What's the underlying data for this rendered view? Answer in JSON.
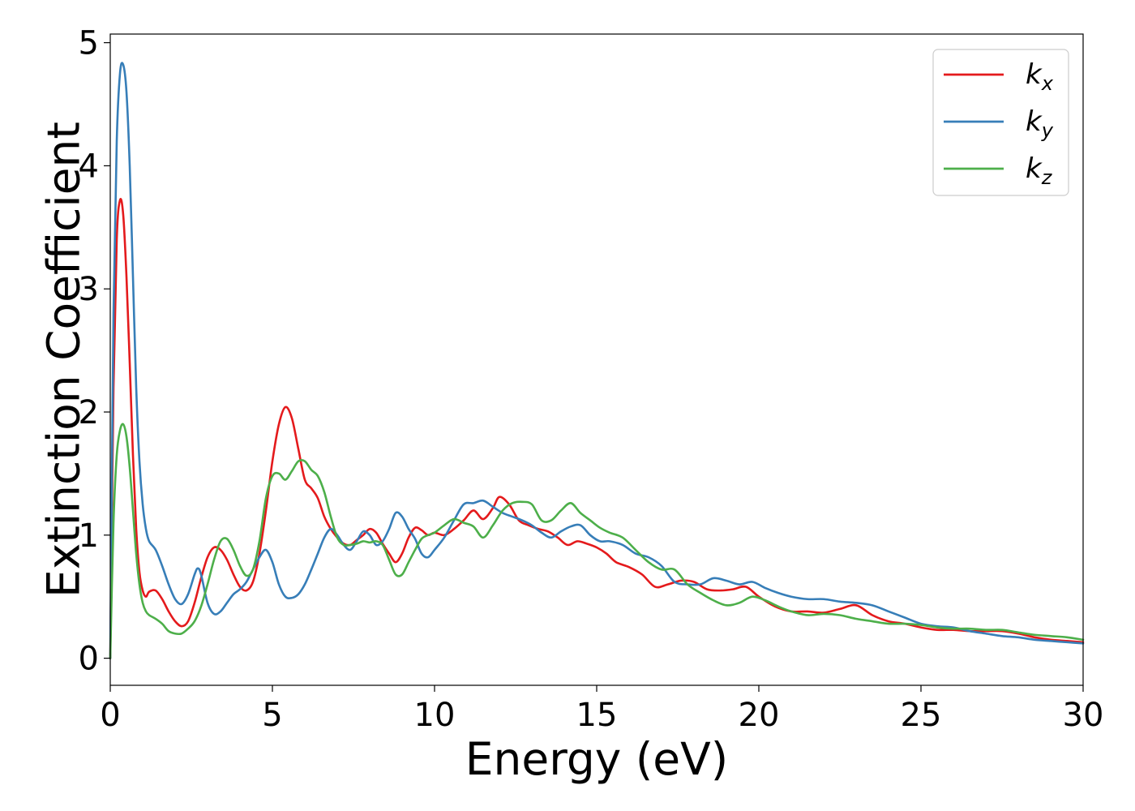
{
  "chart_data": {
    "type": "line",
    "xlabel": "Energy (eV)",
    "ylabel": "Extinction Coefficient",
    "xlim": [
      0,
      30
    ],
    "ylim": [
      -0.22,
      5.07
    ],
    "xticks": [
      0,
      5,
      10,
      15,
      20,
      25,
      30
    ],
    "yticks": [
      0,
      1,
      2,
      3,
      4,
      5
    ],
    "grid": false,
    "legend_position": "top-right",
    "series": [
      {
        "name": "k_x",
        "base": "k",
        "sub": "x",
        "color": "#e41a1c",
        "x": [
          0,
          0.1,
          0.2,
          0.3,
          0.4,
          0.5,
          0.6,
          0.7,
          0.8,
          0.9,
          1.0,
          1.1,
          1.2,
          1.4,
          1.6,
          1.8,
          2.0,
          2.2,
          2.4,
          2.6,
          2.8,
          3.0,
          3.2,
          3.4,
          3.6,
          3.8,
          4.0,
          4.2,
          4.4,
          4.6,
          4.8,
          5.0,
          5.2,
          5.4,
          5.6,
          5.8,
          6.0,
          6.2,
          6.4,
          6.6,
          6.8,
          7.0,
          7.2,
          7.4,
          7.6,
          7.8,
          8.0,
          8.2,
          8.4,
          8.6,
          8.8,
          9.0,
          9.2,
          9.4,
          9.6,
          9.8,
          10.0,
          10.3,
          10.6,
          10.9,
          11.2,
          11.5,
          11.8,
          12.0,
          12.3,
          12.6,
          12.9,
          13.2,
          13.5,
          13.8,
          14.1,
          14.4,
          14.7,
          15.0,
          15.3,
          15.6,
          16.0,
          16.4,
          16.8,
          17.2,
          17.6,
          18.0,
          18.4,
          18.8,
          19.2,
          19.6,
          20.0,
          20.5,
          21.0,
          21.5,
          22.0,
          22.5,
          23.0,
          23.5,
          24.0,
          24.5,
          25.0,
          25.5,
          26.0,
          26.5,
          27.0,
          27.5,
          28.0,
          28.5,
          29.0,
          29.5,
          30.0
        ],
        "y": [
          0.0,
          2.2,
          3.4,
          3.72,
          3.6,
          3.1,
          2.4,
          1.65,
          1.05,
          0.7,
          0.55,
          0.5,
          0.54,
          0.55,
          0.48,
          0.38,
          0.3,
          0.26,
          0.3,
          0.45,
          0.65,
          0.82,
          0.9,
          0.88,
          0.8,
          0.68,
          0.58,
          0.55,
          0.62,
          0.85,
          1.2,
          1.6,
          1.9,
          2.04,
          1.95,
          1.7,
          1.45,
          1.38,
          1.3,
          1.15,
          1.05,
          0.98,
          0.93,
          0.92,
          0.96,
          1.0,
          1.05,
          1.02,
          0.93,
          0.85,
          0.78,
          0.85,
          0.98,
          1.06,
          1.04,
          1.0,
          1.02,
          1.0,
          1.05,
          1.12,
          1.2,
          1.13,
          1.22,
          1.31,
          1.25,
          1.12,
          1.08,
          1.05,
          1.03,
          0.98,
          0.92,
          0.95,
          0.93,
          0.9,
          0.85,
          0.78,
          0.74,
          0.68,
          0.58,
          0.6,
          0.63,
          0.62,
          0.56,
          0.55,
          0.56,
          0.58,
          0.5,
          0.42,
          0.38,
          0.38,
          0.37,
          0.4,
          0.43,
          0.35,
          0.3,
          0.28,
          0.25,
          0.23,
          0.23,
          0.22,
          0.22,
          0.22,
          0.2,
          0.17,
          0.15,
          0.14,
          0.13
        ]
      },
      {
        "name": "k_y",
        "base": "k",
        "sub": "y",
        "color": "#377eb8",
        "x": [
          0,
          0.1,
          0.2,
          0.3,
          0.4,
          0.5,
          0.6,
          0.7,
          0.8,
          0.9,
          1.0,
          1.1,
          1.2,
          1.4,
          1.6,
          1.8,
          2.0,
          2.2,
          2.4,
          2.6,
          2.7,
          2.8,
          3.0,
          3.2,
          3.4,
          3.6,
          3.8,
          4.0,
          4.2,
          4.4,
          4.6,
          4.8,
          5.0,
          5.2,
          5.4,
          5.6,
          5.8,
          6.0,
          6.2,
          6.4,
          6.6,
          6.8,
          7.0,
          7.2,
          7.4,
          7.6,
          7.8,
          8.0,
          8.2,
          8.4,
          8.6,
          8.8,
          9.0,
          9.2,
          9.4,
          9.6,
          9.8,
          10.0,
          10.3,
          10.6,
          10.9,
          11.2,
          11.5,
          11.8,
          12.1,
          12.4,
          12.7,
          13.0,
          13.3,
          13.6,
          13.9,
          14.2,
          14.5,
          14.8,
          15.1,
          15.4,
          15.8,
          16.2,
          16.6,
          17.0,
          17.4,
          17.8,
          18.2,
          18.6,
          19.0,
          19.4,
          19.8,
          20.2,
          20.6,
          21.0,
          21.5,
          22.0,
          22.5,
          23.0,
          23.5,
          24.0,
          24.5,
          25.0,
          25.5,
          26.0,
          26.5,
          27.0,
          27.5,
          28.0,
          28.5,
          29.0,
          29.5,
          30.0
        ],
        "y": [
          0.0,
          2.8,
          4.2,
          4.75,
          4.82,
          4.6,
          4.0,
          3.1,
          2.2,
          1.6,
          1.25,
          1.05,
          0.95,
          0.88,
          0.75,
          0.6,
          0.48,
          0.44,
          0.52,
          0.68,
          0.73,
          0.68,
          0.45,
          0.36,
          0.38,
          0.45,
          0.52,
          0.56,
          0.62,
          0.72,
          0.82,
          0.88,
          0.78,
          0.6,
          0.5,
          0.49,
          0.52,
          0.6,
          0.72,
          0.85,
          0.98,
          1.05,
          1.0,
          0.92,
          0.88,
          0.95,
          1.03,
          1.0,
          0.92,
          0.95,
          1.05,
          1.18,
          1.15,
          1.05,
          0.97,
          0.85,
          0.82,
          0.88,
          0.98,
          1.12,
          1.25,
          1.26,
          1.28,
          1.23,
          1.18,
          1.15,
          1.12,
          1.08,
          1.02,
          0.98,
          1.03,
          1.07,
          1.08,
          1.0,
          0.95,
          0.95,
          0.92,
          0.85,
          0.82,
          0.75,
          0.62,
          0.6,
          0.6,
          0.65,
          0.63,
          0.6,
          0.62,
          0.57,
          0.53,
          0.5,
          0.48,
          0.48,
          0.46,
          0.45,
          0.43,
          0.38,
          0.33,
          0.28,
          0.26,
          0.25,
          0.22,
          0.2,
          0.18,
          0.17,
          0.15,
          0.14,
          0.13,
          0.12
        ]
      },
      {
        "name": "k_z",
        "base": "k",
        "sub": "z",
        "color": "#4daf4a",
        "x": [
          0,
          0.1,
          0.2,
          0.3,
          0.4,
          0.5,
          0.6,
          0.7,
          0.8,
          0.9,
          1.0,
          1.1,
          1.2,
          1.4,
          1.6,
          1.8,
          2.0,
          2.2,
          2.4,
          2.6,
          2.8,
          3.0,
          3.2,
          3.4,
          3.6,
          3.8,
          4.0,
          4.2,
          4.4,
          4.6,
          4.8,
          5.0,
          5.2,
          5.4,
          5.6,
          5.8,
          6.0,
          6.2,
          6.4,
          6.6,
          6.8,
          7.0,
          7.2,
          7.4,
          7.6,
          7.8,
          8.0,
          8.2,
          8.4,
          8.6,
          8.8,
          9.0,
          9.2,
          9.4,
          9.6,
          9.8,
          10.0,
          10.3,
          10.6,
          10.9,
          11.2,
          11.5,
          11.8,
          12.1,
          12.4,
          12.7,
          13.0,
          13.3,
          13.6,
          13.9,
          14.2,
          14.5,
          14.8,
          15.1,
          15.4,
          15.8,
          16.2,
          16.6,
          17.0,
          17.4,
          17.8,
          18.2,
          18.6,
          19.0,
          19.4,
          19.8,
          20.2,
          20.6,
          21.0,
          21.5,
          22.0,
          22.5,
          23.0,
          23.5,
          24.0,
          24.5,
          25.0,
          25.5,
          26.0,
          26.5,
          27.0,
          27.5,
          28.0,
          28.5,
          29.0,
          29.5,
          30.0
        ],
        "y": [
          0.0,
          1.1,
          1.65,
          1.85,
          1.9,
          1.8,
          1.55,
          1.2,
          0.85,
          0.6,
          0.45,
          0.38,
          0.35,
          0.32,
          0.28,
          0.22,
          0.2,
          0.2,
          0.24,
          0.3,
          0.42,
          0.6,
          0.8,
          0.95,
          0.97,
          0.88,
          0.75,
          0.67,
          0.72,
          0.95,
          1.3,
          1.48,
          1.5,
          1.45,
          1.52,
          1.6,
          1.6,
          1.53,
          1.48,
          1.35,
          1.15,
          0.98,
          0.92,
          0.92,
          0.93,
          0.95,
          0.94,
          0.95,
          0.92,
          0.8,
          0.68,
          0.68,
          0.78,
          0.88,
          0.97,
          1.0,
          1.02,
          1.08,
          1.13,
          1.1,
          1.07,
          0.98,
          1.08,
          1.2,
          1.26,
          1.27,
          1.25,
          1.12,
          1.12,
          1.2,
          1.26,
          1.18,
          1.12,
          1.06,
          1.02,
          0.98,
          0.88,
          0.78,
          0.72,
          0.72,
          0.6,
          0.53,
          0.47,
          0.43,
          0.45,
          0.5,
          0.47,
          0.42,
          0.38,
          0.35,
          0.36,
          0.35,
          0.32,
          0.3,
          0.28,
          0.28,
          0.27,
          0.25,
          0.24,
          0.24,
          0.23,
          0.23,
          0.21,
          0.19,
          0.18,
          0.17,
          0.15
        ]
      }
    ]
  }
}
